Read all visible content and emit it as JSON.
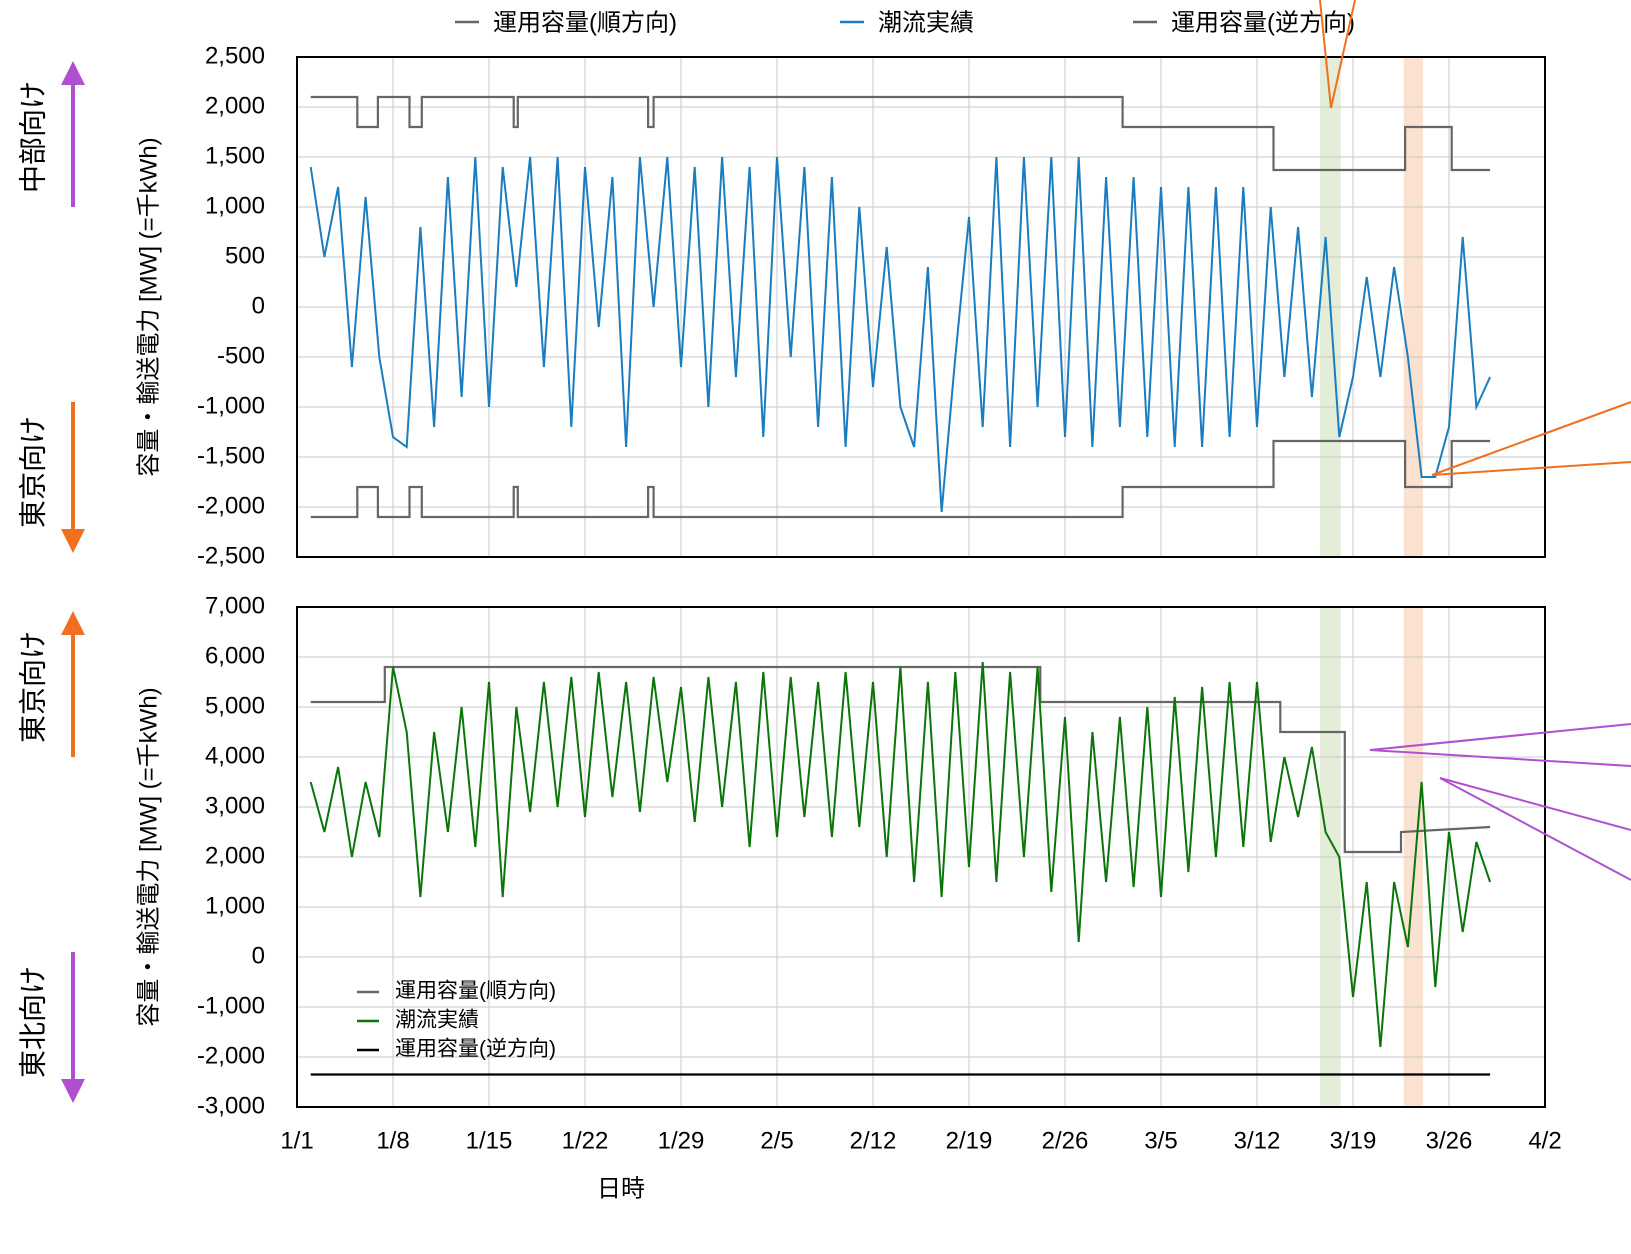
{
  "chart_data": [
    {
      "type": "line",
      "ylabel": "容量・輸送電力 [MW] (=千kWh)",
      "side_labels": [
        "中部向け",
        "東京向け"
      ],
      "legend": "top",
      "grid": true,
      "xlim": [
        0,
        91
      ],
      "xticks": [
        0,
        7,
        14,
        21,
        28,
        35,
        42,
        49,
        56,
        63,
        70,
        77,
        84,
        91
      ],
      "ylim": [
        -2500,
        2500
      ],
      "yticks": [
        {
          "value": -2500,
          "label": "-2,500"
        },
        {
          "value": -2000,
          "label": "-2,000"
        },
        {
          "value": -1500,
          "label": "-1,500"
        },
        {
          "value": -1000,
          "label": "-1,000"
        },
        -500,
        0,
        500,
        {
          "value": 1000,
          "label": "1,000"
        },
        {
          "value": 1500,
          "label": "1,500"
        },
        {
          "value": 2000,
          "label": "2,000"
        },
        {
          "value": 2500,
          "label": "2,500"
        }
      ],
      "spans": [
        {
          "x": [
            74.6,
            76.1
          ],
          "color": "#e3edd8"
        },
        {
          "x": [
            80.7,
            82.1
          ],
          "color": "#fbe2d0"
        }
      ],
      "series": [
        {
          "name": "運用容量(順方向)",
          "color": "#666666",
          "x": [
            1,
            4.4,
            4.4,
            5.9,
            5.9,
            8.2,
            8.2,
            9.1,
            9.1,
            15.8,
            15.8,
            16.1,
            16.1,
            25.6,
            25.6,
            26,
            26,
            60.2,
            60.2,
            71.2,
            71.2,
            80.8,
            80.8,
            84.2,
            84.2,
            87
          ],
          "values": [
            2100,
            2100,
            1800,
            1800,
            2100,
            2100,
            1800,
            1800,
            2100,
            2100,
            1800,
            1800,
            2100,
            2100,
            1800,
            1800,
            2100,
            2100,
            1800,
            1800,
            1370,
            1370,
            1800,
            1800,
            1370,
            1370
          ]
        },
        {
          "name": "潮流実績",
          "color": "#1a7dc0",
          "x": [
            1,
            2,
            3,
            4,
            5,
            6,
            7,
            8,
            9,
            10,
            11,
            12,
            13,
            14,
            15,
            16,
            17,
            18,
            19,
            20,
            21,
            22,
            23,
            24,
            25,
            26,
            27,
            28,
            29,
            30,
            31,
            32,
            33,
            34,
            35,
            36,
            37,
            38,
            39,
            40,
            41,
            42,
            43,
            44,
            45,
            46,
            47,
            48,
            49,
            50,
            51,
            52,
            53,
            54,
            55,
            56,
            57,
            58,
            59,
            60,
            61,
            62,
            63,
            64,
            65,
            66,
            67,
            68,
            69,
            70,
            71,
            72,
            73,
            74,
            75,
            76,
            77,
            78,
            79,
            80,
            81,
            82,
            83,
            84,
            85,
            86,
            87
          ],
          "values": [
            1400,
            500,
            1200,
            -600,
            1100,
            -500,
            -1300,
            -1400,
            800,
            -1200,
            1300,
            -900,
            1500,
            -1000,
            1400,
            200,
            1500,
            -600,
            1500,
            -1200,
            1400,
            -200,
            1300,
            -1400,
            1500,
            0,
            1500,
            -600,
            1400,
            -1000,
            1500,
            -700,
            1400,
            -1300,
            1500,
            -500,
            1400,
            -1200,
            1300,
            -1400,
            1000,
            -800,
            600,
            -1000,
            -1400,
            400,
            -2050,
            -500,
            900,
            -1200,
            1500,
            -1400,
            1500,
            -1000,
            1500,
            -1300,
            1500,
            -1400,
            1300,
            -1200,
            1300,
            -1300,
            1200,
            -1400,
            1200,
            -1400,
            1200,
            -1300,
            1200,
            -1200,
            1000,
            -700,
            800,
            -900,
            700,
            -1300,
            -700,
            300,
            -700,
            400,
            -500,
            -1700,
            -1700,
            -1200,
            700,
            -1000,
            -700
          ]
        },
        {
          "name": "運用容量(逆方向)",
          "color": "#666666",
          "x": [
            1,
            4.4,
            4.4,
            5.9,
            5.9,
            8.2,
            8.2,
            9.1,
            9.1,
            15.8,
            15.8,
            16.1,
            16.1,
            25.6,
            25.6,
            26,
            26,
            60.2,
            60.2,
            71.2,
            71.2,
            80.8,
            80.8,
            84.2,
            84.2,
            87
          ],
          "values": [
            -2100,
            -2100,
            -1800,
            -1800,
            -2100,
            -2100,
            -1800,
            -1800,
            -2100,
            -2100,
            -1800,
            -1800,
            -2100,
            -2100,
            -1800,
            -1800,
            -2100,
            -2100,
            -1800,
            -1800,
            -1340,
            -1340,
            -1800,
            -1800,
            -1340,
            -1340
          ]
        }
      ]
    },
    {
      "type": "line",
      "ylabel": "容量・輸送電力 [MW] (=千kWh)",
      "side_labels": [
        "東京向け",
        "東北向け"
      ],
      "xlabel": "日時",
      "legend": "lower left",
      "grid": true,
      "xlim": [
        0,
        91
      ],
      "xticks": [
        {
          "value": 0,
          "label": "1/1"
        },
        {
          "value": 7,
          "label": "1/8"
        },
        {
          "value": 14,
          "label": "1/15"
        },
        {
          "value": 21,
          "label": "1/22"
        },
        {
          "value": 28,
          "label": "1/29"
        },
        {
          "value": 35,
          "label": "2/5"
        },
        {
          "value": 42,
          "label": "2/12"
        },
        {
          "value": 49,
          "label": "2/19"
        },
        {
          "value": 56,
          "label": "2/26"
        },
        {
          "value": 63,
          "label": "3/5"
        },
        {
          "value": 70,
          "label": "3/12"
        },
        {
          "value": 77,
          "label": "3/19"
        },
        {
          "value": 84,
          "label": "3/26"
        },
        {
          "value": 91,
          "label": "4/2"
        }
      ],
      "ylim": [
        -3000,
        7000
      ],
      "yticks": [
        {
          "value": -3000,
          "label": "-3,000"
        },
        {
          "value": -2000,
          "label": "-2,000"
        },
        {
          "value": -1000,
          "label": "-1,000"
        },
        0,
        {
          "value": 1000,
          "label": "1,000"
        },
        {
          "value": 2000,
          "label": "2,000"
        },
        {
          "value": 3000,
          "label": "3,000"
        },
        {
          "value": 4000,
          "label": "4,000"
        },
        {
          "value": 5000,
          "label": "5,000"
        },
        {
          "value": 6000,
          "label": "6,000"
        },
        {
          "value": 7000,
          "label": "7,000"
        }
      ],
      "spans": [
        {
          "x": [
            74.6,
            76.1
          ],
          "color": "#e3edd8"
        },
        {
          "x": [
            80.7,
            82.1
          ],
          "color": "#fbe2d0"
        }
      ],
      "series": [
        {
          "name": "運用容量(順方向)",
          "color": "#666666",
          "x": [
            1,
            6.4,
            6.4,
            54.2,
            54.2,
            71.7,
            71.7,
            76.4,
            76.4,
            80.5,
            80.5,
            87
          ],
          "values": [
            5100,
            5100,
            5800,
            5800,
            5100,
            5100,
            4500,
            4500,
            2100,
            2100,
            2500,
            2600
          ]
        },
        {
          "name": "潮流実績",
          "color": "#0a760a",
          "x": [
            1,
            2,
            3,
            4,
            5,
            6,
            7,
            8,
            9,
            10,
            11,
            12,
            13,
            14,
            15,
            16,
            17,
            18,
            19,
            20,
            21,
            22,
            23,
            24,
            25,
            26,
            27,
            28,
            29,
            30,
            31,
            32,
            33,
            34,
            35,
            36,
            37,
            38,
            39,
            40,
            41,
            42,
            43,
            44,
            45,
            46,
            47,
            48,
            49,
            50,
            51,
            52,
            53,
            54,
            55,
            56,
            57,
            58,
            59,
            60,
            61,
            62,
            63,
            64,
            65,
            66,
            67,
            68,
            69,
            70,
            71,
            72,
            73,
            74,
            75,
            76,
            77,
            78,
            79,
            80,
            81,
            82,
            83,
            84,
            85,
            86,
            87
          ],
          "values": [
            3500,
            2500,
            3800,
            2000,
            3500,
            2400,
            5800,
            4500,
            1200,
            4500,
            2500,
            5000,
            2200,
            5500,
            1200,
            5000,
            2900,
            5500,
            3000,
            5600,
            2800,
            5700,
            3200,
            5500,
            2900,
            5600,
            3500,
            5400,
            2700,
            5600,
            3000,
            5500,
            2200,
            5700,
            2400,
            5600,
            2800,
            5500,
            2400,
            5700,
            2600,
            5500,
            2000,
            5800,
            1500,
            5500,
            1200,
            5700,
            1800,
            5900,
            1500,
            5700,
            2000,
            5800,
            1300,
            4800,
            300,
            4500,
            1500,
            4800,
            1400,
            5000,
            1200,
            5200,
            1700,
            5400,
            2000,
            5500,
            2200,
            5500,
            2300,
            4000,
            2800,
            4200,
            2500,
            2000,
            -800,
            1500,
            -1800,
            1500,
            200,
            3500,
            -600,
            2500,
            500,
            2300,
            1500
          ]
        },
        {
          "name": "運用容量(逆方向)",
          "color": "#000000",
          "x": [
            1,
            87
          ],
          "values": [
            -2350,
            -2350
          ]
        }
      ]
    }
  ]
}
